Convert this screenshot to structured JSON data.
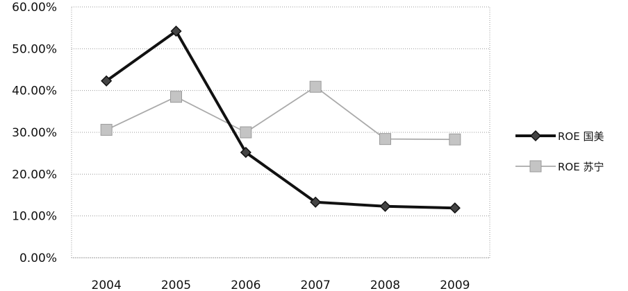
{
  "chart_data": {
    "type": "line",
    "categories": [
      "2004",
      "2005",
      "2006",
      "2007",
      "2008",
      "2009"
    ],
    "series": [
      {
        "name": "ROE 国美",
        "values": [
          42.3,
          54.2,
          25.2,
          13.3,
          12.3,
          11.9
        ],
        "color": "#111111",
        "marker": "diamond"
      },
      {
        "name": "ROE 苏宁",
        "values": [
          30.6,
          38.5,
          30.0,
          40.9,
          28.4,
          28.3
        ],
        "color": "#aaaaaa",
        "marker": "square"
      }
    ],
    "ylim": [
      0,
      60
    ],
    "yticks": [
      "0.00%",
      "10.00%",
      "20.00%",
      "30.00%",
      "40.00%",
      "50.00%",
      "60.00%"
    ],
    "grid": true,
    "legend": "right"
  }
}
